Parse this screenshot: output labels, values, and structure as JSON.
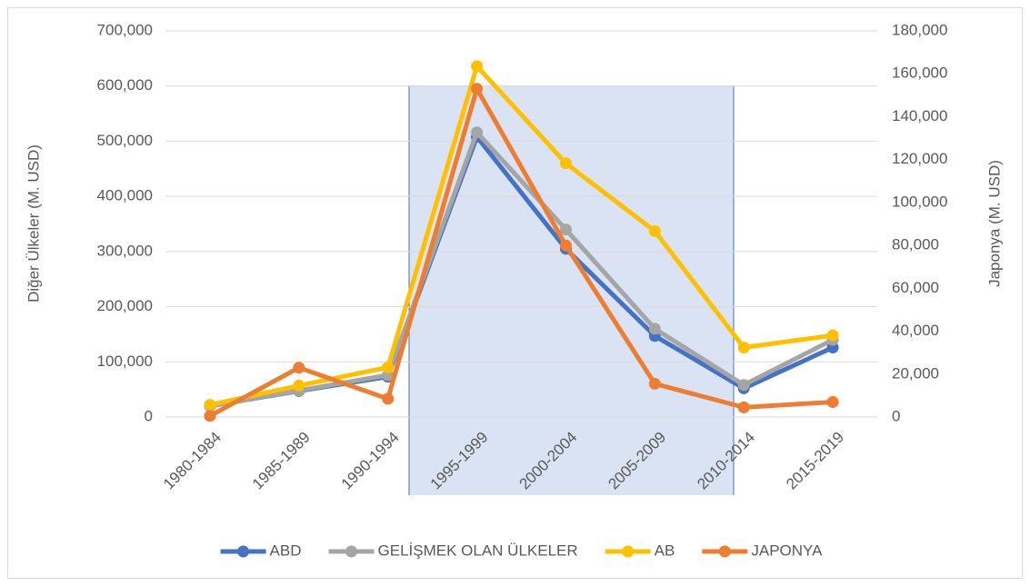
{
  "chart_data": {
    "type": "line",
    "categories": [
      "1980-1984",
      "1985-1989",
      "1990-1994",
      "1995-1999",
      "2000-2004",
      "2005-2009",
      "2010-2014",
      "2015-2019"
    ],
    "series": [
      {
        "name": "ABD",
        "color": "#4472c4",
        "values": [
          20000,
          47000,
          73000,
          508000,
          305000,
          147000,
          52000,
          126000
        ]
      },
      {
        "name": "GELİŞMEK OLAN ÜLKELER",
        "color": "#a5a5a5",
        "values": [
          20000,
          48000,
          76000,
          516000,
          340000,
          160000,
          58000,
          140000
        ]
      },
      {
        "name": "AB",
        "color": "#ffc000",
        "values": [
          22000,
          57000,
          90000,
          636000,
          460000,
          337000,
          126000,
          148000
        ]
      },
      {
        "name": "JAPONYA",
        "color": "#ed7d31",
        "axis": "y2",
        "values": [
          500,
          23000,
          8500,
          153000,
          80000,
          15500,
          4500,
          7000
        ]
      }
    ],
    "ylabel": "Diğer Ülkeler (M. USD)",
    "y2label": "Japonya (M. USD)",
    "ylim": [
      0,
      700000
    ],
    "yticks": [
      0,
      {
        "value": 100000,
        "label": "100,000"
      },
      {
        "value": 200000,
        "label": "200,000"
      },
      {
        "value": 300000,
        "label": "300,000"
      },
      {
        "value": 400000,
        "label": "400,000"
      },
      {
        "value": 500000,
        "label": "500,000"
      },
      {
        "value": 600000,
        "label": "600,000"
      },
      {
        "value": 700000,
        "label": "700,000"
      }
    ],
    "y2lim": [
      0,
      180000
    ],
    "y2ticks": [
      0,
      {
        "value": 20000,
        "label": "20,000"
      },
      {
        "value": 40000,
        "label": "40,000"
      },
      {
        "value": 60000,
        "label": "60,000"
      },
      {
        "value": 80000,
        "label": "80,000"
      },
      {
        "value": 100000,
        "label": "100,000"
      },
      {
        "value": 120000,
        "label": "120,000"
      },
      {
        "value": 140000,
        "label": "140,000"
      },
      {
        "value": 160000,
        "label": "160,000"
      },
      {
        "value": 180000,
        "label": "180,000"
      }
    ],
    "grid": true,
    "legend": "bottom"
  }
}
